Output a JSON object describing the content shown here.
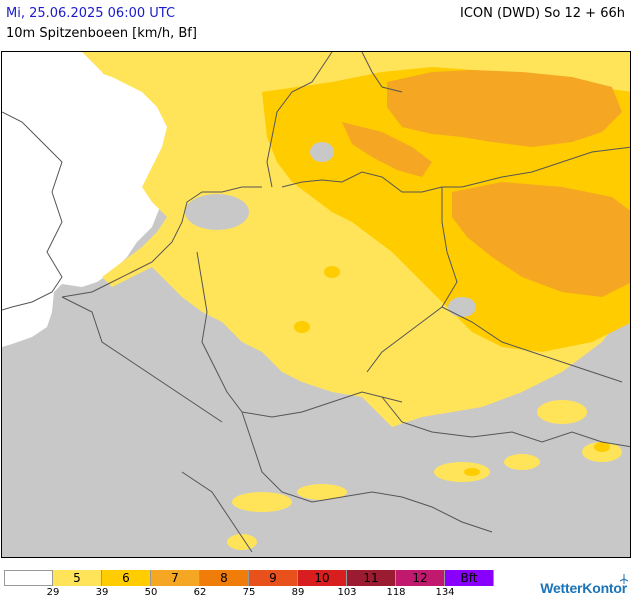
{
  "header": {
    "datetime": "Mi, 25.06.2025 06:00 UTC",
    "parameter": "10m Spitzenboeen [km/h, Bf]",
    "model_run": "ICON (DWD) So 12 + 66h"
  },
  "legend": {
    "bins": [
      {
        "label": "",
        "color": "#ffffff"
      },
      {
        "label": "5",
        "color": "#ffe45a"
      },
      {
        "label": "6",
        "color": "#ffcc00"
      },
      {
        "label": "7",
        "color": "#f5a623"
      },
      {
        "label": "8",
        "color": "#f07d0a"
      },
      {
        "label": "9",
        "color": "#e8501c"
      },
      {
        "label": "10",
        "color": "#d81e1e"
      },
      {
        "label": "11",
        "color": "#9b1b30"
      },
      {
        "label": "12",
        "color": "#c0196e"
      },
      {
        "label": "Bft",
        "color": "#8a00ff"
      }
    ],
    "ticks": [
      "29",
      "39",
      "50",
      "62",
      "75",
      "89",
      "103",
      "118",
      "134"
    ]
  },
  "brand": {
    "name": "WetterKontor",
    "icon": "wind-turbine-icon"
  },
  "colors": {
    "land": "#c8c8c8",
    "sea": "#ffffff",
    "border": "#555555",
    "bf5": "#ffe45a",
    "bf6": "#ffcc00",
    "bf7": "#f5a623"
  }
}
